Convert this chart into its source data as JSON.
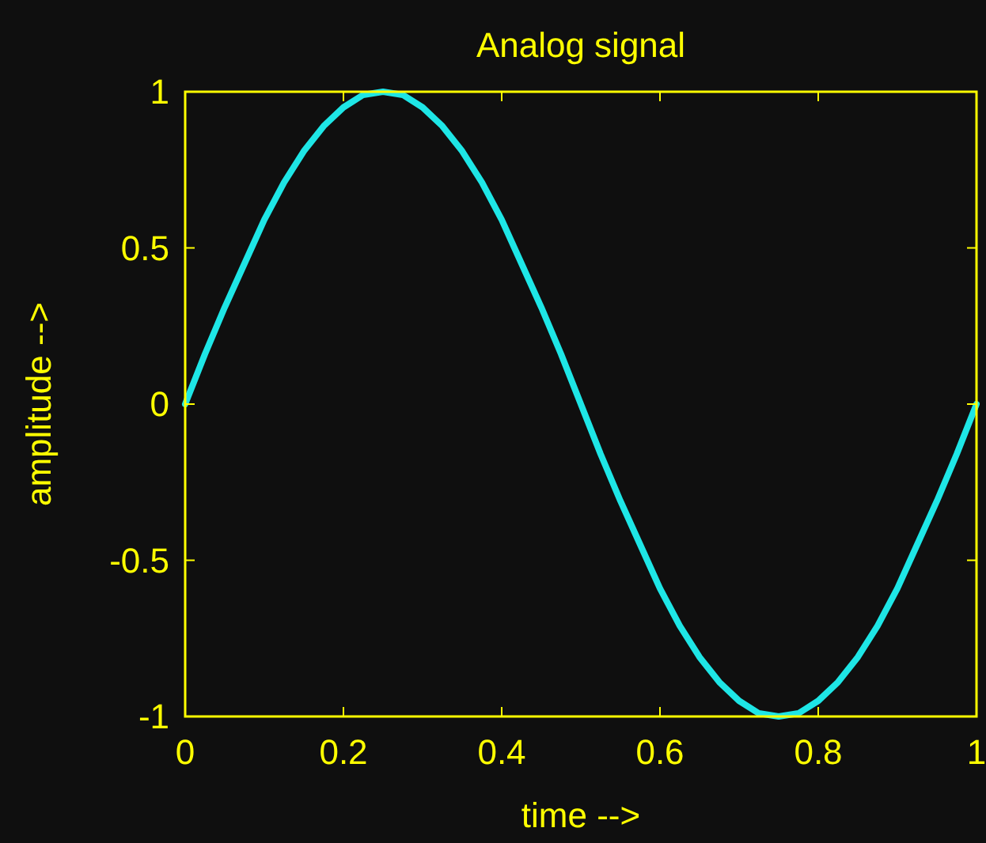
{
  "chart_data": {
    "type": "line",
    "title": "Analog signal",
    "xlabel": "time -->",
    "ylabel": "amplitude -->",
    "x": [
      0,
      0.025,
      0.05,
      0.075,
      0.1,
      0.125,
      0.15,
      0.175,
      0.2,
      0.225,
      0.25,
      0.275,
      0.3,
      0.325,
      0.35,
      0.375,
      0.4,
      0.425,
      0.45,
      0.475,
      0.5,
      0.525,
      0.55,
      0.575,
      0.6,
      0.625,
      0.65,
      0.675,
      0.7,
      0.725,
      0.75,
      0.775,
      0.8,
      0.825,
      0.85,
      0.875,
      0.9,
      0.925,
      0.95,
      0.975,
      1
    ],
    "series": [
      {
        "color": "#1ee6e6",
        "values": [
          0,
          0.16,
          0.31,
          0.45,
          0.59,
          0.71,
          0.81,
          0.89,
          0.95,
          0.99,
          1,
          0.99,
          0.95,
          0.89,
          0.81,
          0.71,
          0.59,
          0.45,
          0.31,
          0.16,
          0,
          -0.16,
          -0.31,
          -0.45,
          -0.59,
          -0.71,
          -0.81,
          -0.89,
          -0.95,
          -0.99,
          -1,
          -0.99,
          -0.95,
          -0.89,
          -0.81,
          -0.71,
          -0.59,
          -0.45,
          -0.31,
          -0.16,
          0
        ]
      }
    ],
    "xlim": [
      0,
      1
    ],
    "xticks": [
      0,
      0.2,
      0.4,
      0.6,
      0.8,
      1
    ],
    "ylim": [
      -1,
      1
    ],
    "yticks": [
      -1,
      -0.5,
      0,
      0.5,
      1
    ],
    "grid": false,
    "marker": "none",
    "line_style": "solid"
  }
}
